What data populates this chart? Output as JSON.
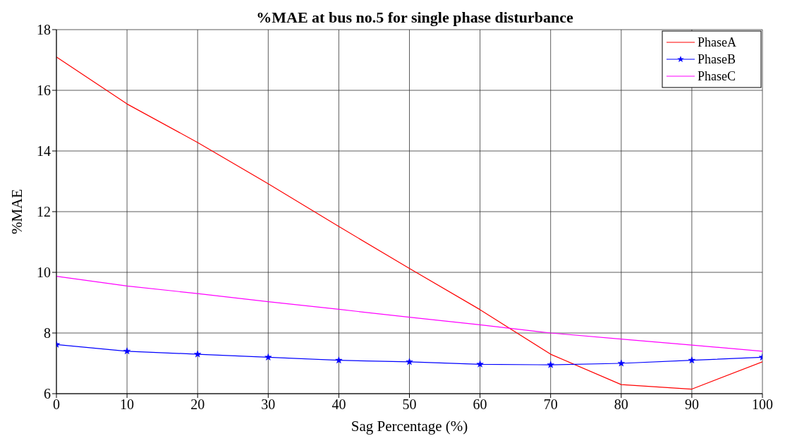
{
  "chart_data": {
    "type": "line",
    "title": "%MAE at bus no.5 for single phase disturbance",
    "xlabel": "Sag Percentage (%)",
    "ylabel": "%MAE",
    "x": [
      0,
      10,
      20,
      30,
      40,
      50,
      60,
      70,
      80,
      90,
      100
    ],
    "series": [
      {
        "name": "PhaseA",
        "color": "#ff0000",
        "values": [
          17.1,
          15.55,
          14.28,
          12.92,
          11.51,
          10.13,
          8.77,
          7.3,
          6.3,
          6.15,
          7.05
        ]
      },
      {
        "name": "PhaseB",
        "color": "#0000ff",
        "marker": "star",
        "values": [
          7.62,
          7.4,
          7.3,
          7.2,
          7.1,
          7.05,
          6.97,
          6.95,
          7.0,
          7.1,
          7.2
        ]
      },
      {
        "name": "PhaseC",
        "color": "#ff00ff",
        "values": [
          9.87,
          9.55,
          9.3,
          9.03,
          8.78,
          8.52,
          8.27,
          8.0,
          7.8,
          7.6,
          7.4
        ]
      }
    ],
    "xlim": [
      0,
      100
    ],
    "xticks": [
      0,
      10,
      20,
      30,
      40,
      50,
      60,
      70,
      80,
      90,
      100
    ],
    "ylim": [
      6,
      18
    ],
    "yticks": [
      6,
      8,
      10,
      12,
      14,
      16,
      18
    ],
    "grid": true,
    "legend": "top right",
    "marker": "none",
    "line_style": "solid"
  }
}
